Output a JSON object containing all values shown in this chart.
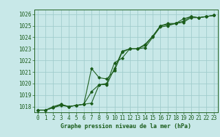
{
  "title": "Graphe pression niveau de la mer (hPa)",
  "xlim": [
    -0.5,
    23.5
  ],
  "ylim": [
    1017.5,
    1026.4
  ],
  "xticks": [
    0,
    1,
    2,
    3,
    4,
    5,
    6,
    7,
    8,
    9,
    10,
    11,
    12,
    13,
    14,
    15,
    16,
    17,
    18,
    19,
    20,
    21,
    22,
    23
  ],
  "yticks": [
    1018,
    1019,
    1020,
    1021,
    1022,
    1023,
    1024,
    1025,
    1026
  ],
  "bg_color": "#c8e8e8",
  "grid_color": "#a0cccc",
  "line_color": "#1a5c1a",
  "series1_y": [
    1017.7,
    1017.7,
    1017.9,
    1018.1,
    1018.0,
    1018.1,
    1018.2,
    1018.3,
    1019.9,
    1020.0,
    1021.8,
    1022.2,
    1023.0,
    1023.0,
    1023.4,
    1024.1,
    1025.0,
    1025.2,
    1025.2,
    1025.6,
    1025.8,
    1025.7,
    1025.8,
    1025.9
  ],
  "series2_y": [
    1017.7,
    1017.7,
    1017.9,
    1018.2,
    1018.0,
    1018.1,
    1018.2,
    1019.3,
    1019.9,
    1019.9,
    1021.3,
    1022.8,
    1023.0,
    1023.0,
    1023.1,
    1024.0,
    1024.9,
    1025.0,
    1025.2,
    1025.3,
    1025.7,
    1025.7,
    1025.8,
    1025.9
  ],
  "series3_y": [
    1017.7,
    1017.7,
    1018.0,
    1018.2,
    1018.0,
    1018.1,
    1018.2,
    1021.3,
    1020.5,
    1020.4,
    1021.1,
    1022.7,
    1023.0,
    1023.0,
    1023.3,
    1024.1,
    1025.0,
    1025.1,
    1025.2,
    1025.4,
    1025.8,
    1025.7,
    1025.8,
    1025.9
  ]
}
